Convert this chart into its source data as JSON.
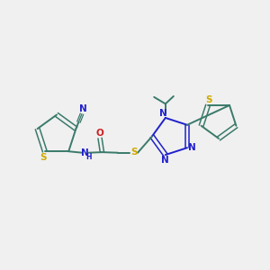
{
  "bg_color": "#f0f0f0",
  "bond_color": "#3a7a6a",
  "n_color": "#2020cc",
  "o_color": "#cc2020",
  "s_color": "#ccaa00",
  "figsize": [
    3.0,
    3.0
  ],
  "dpi": 100,
  "xlim": [
    0,
    10
  ],
  "ylim": [
    0,
    10
  ]
}
